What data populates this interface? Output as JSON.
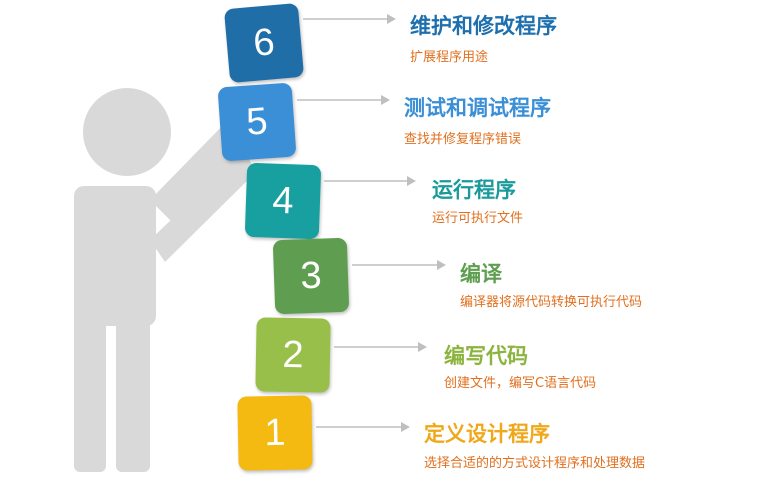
{
  "steps": [
    {
      "number": "6",
      "title": "维护和修改程序",
      "desc": "扩展程序用途",
      "box_color": "#1f6ea7",
      "title_color": "#1e6fae"
    },
    {
      "number": "5",
      "title": "测试和调试程序",
      "desc": "查找并修复程序错误",
      "box_color": "#3b8fd6",
      "title_color": "#3a8fd6"
    },
    {
      "number": "4",
      "title": "运行程序",
      "desc": "运行可执行文件",
      "box_color": "#189f9f",
      "title_color": "#1a9b9b"
    },
    {
      "number": "3",
      "title": "编译",
      "desc": "编译器将源代码转换可执行代码",
      "box_color": "#5f9e50",
      "title_color": "#5f9e50"
    },
    {
      "number": "2",
      "title": "编写代码",
      "desc": "创建文件，编写C语言代码",
      "box_color": "#97bf4a",
      "title_color": "#8cb43f"
    },
    {
      "number": "1",
      "title": "定义设计程序",
      "desc": "选择合适的的方式设计程序和处理数据",
      "box_color": "#f4ba12",
      "title_color": "#f0a81a"
    }
  ],
  "colors": {
    "figure": "#d9d9d9",
    "arrow": "#bfbfbf",
    "desc": "#e0701f"
  }
}
